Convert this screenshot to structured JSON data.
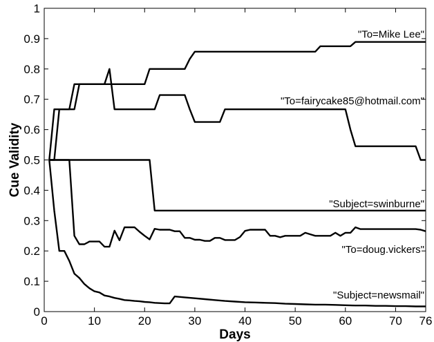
{
  "chart_data": {
    "type": "line",
    "xlabel": "Days",
    "ylabel": "Cue Validity",
    "xlim": [
      0,
      76
    ],
    "ylim": [
      0,
      1
    ],
    "x_ticks": [
      0,
      10,
      20,
      30,
      40,
      50,
      60,
      70,
      76
    ],
    "y_ticks": [
      0,
      0.1,
      0.2,
      0.3,
      0.4,
      0.5,
      0.6,
      0.7,
      0.8,
      0.9,
      1
    ],
    "y_tick_labels": [
      "0",
      "0.1",
      "0.2",
      "0.3",
      "0.4",
      "0.5",
      "0.6",
      "0.7",
      "0.8",
      "0.9",
      "1"
    ],
    "grid": false,
    "legend": "none",
    "series": [
      {
        "name": "\"To=Mike Lee\"",
        "x": [
          1,
          2,
          3,
          4,
          5,
          6,
          7,
          12,
          13,
          17,
          18,
          20,
          21,
          28,
          29,
          30,
          50,
          54,
          55,
          60,
          61,
          62,
          76
        ],
        "y": [
          0.5,
          0.667,
          0.667,
          0.667,
          0.667,
          0.75,
          0.75,
          0.75,
          0.75,
          0.75,
          0.75,
          0.75,
          0.8,
          0.8,
          0.833,
          0.857,
          0.857,
          0.857,
          0.875,
          0.875,
          0.875,
          0.889,
          0.889
        ]
      },
      {
        "name": "\"To=fairycake85@hotmail.com\"",
        "x": [
          1,
          2,
          3,
          6,
          7,
          12,
          13,
          14,
          21,
          22,
          23,
          28,
          29,
          30,
          34,
          35,
          36,
          59,
          60,
          61,
          62,
          74,
          75,
          76
        ],
        "y": [
          0.5,
          0.5,
          0.667,
          0.667,
          0.75,
          0.75,
          0.8,
          0.667,
          0.667,
          0.667,
          0.714,
          0.714,
          0.667,
          0.625,
          0.625,
          0.625,
          0.667,
          0.667,
          0.667,
          0.6,
          0.545,
          0.545,
          0.5,
          0.5
        ]
      },
      {
        "name": "\"Subject=swinburne\"",
        "x": [
          1,
          21,
          22,
          76
        ],
        "y": [
          0.5,
          0.5,
          0.333,
          0.333
        ]
      },
      {
        "name": "\"To=doug.vickers\"",
        "x": [
          1,
          5,
          6,
          7,
          8,
          9,
          10,
          11,
          12,
          13,
          14,
          15,
          16,
          17,
          18,
          19,
          20,
          21,
          22,
          23,
          24,
          25,
          26,
          27,
          28,
          29,
          30,
          31,
          32,
          33,
          34,
          35,
          36,
          37,
          38,
          39,
          40,
          41,
          42,
          43,
          44,
          45,
          46,
          47,
          48,
          49,
          50,
          51,
          52,
          53,
          54,
          55,
          56,
          57,
          58,
          59,
          60,
          61,
          62,
          63,
          64,
          65,
          66,
          67,
          68,
          69,
          70,
          71,
          72,
          73,
          74,
          75,
          76
        ],
        "y": [
          0.5,
          0.5,
          0.25,
          0.222,
          0.222,
          0.231,
          0.231,
          0.231,
          0.214,
          0.214,
          0.267,
          0.235,
          0.278,
          0.278,
          0.278,
          0.263,
          0.25,
          0.238,
          0.273,
          0.27,
          0.27,
          0.27,
          0.265,
          0.265,
          0.243,
          0.243,
          0.237,
          0.237,
          0.233,
          0.233,
          0.243,
          0.243,
          0.236,
          0.236,
          0.236,
          0.246,
          0.266,
          0.27,
          0.27,
          0.27,
          0.27,
          0.25,
          0.25,
          0.245,
          0.25,
          0.25,
          0.25,
          0.25,
          0.26,
          0.255,
          0.25,
          0.25,
          0.25,
          0.25,
          0.26,
          0.25,
          0.26,
          0.26,
          0.278,
          0.272,
          0.272,
          0.272,
          0.272,
          0.272,
          0.272,
          0.272,
          0.272,
          0.272,
          0.272,
          0.272,
          0.272,
          0.27,
          0.265
        ]
      },
      {
        "name": "\"Subject=newsmail\"",
        "x": [
          1,
          2,
          3,
          4,
          5,
          6,
          7,
          8,
          9,
          10,
          11,
          12,
          13,
          14,
          15,
          16,
          17,
          18,
          19,
          20,
          21,
          22,
          23,
          24,
          25,
          26,
          28,
          30,
          32,
          34,
          36,
          38,
          40,
          42,
          44,
          46,
          48,
          50,
          52,
          54,
          56,
          58,
          60,
          62,
          64,
          66,
          68,
          70,
          72,
          74,
          76
        ],
        "y": [
          0.5,
          0.333,
          0.2,
          0.2,
          0.167,
          0.125,
          0.111,
          0.091,
          0.077,
          0.067,
          0.063,
          0.053,
          0.05,
          0.045,
          0.042,
          0.038,
          0.037,
          0.035,
          0.034,
          0.032,
          0.031,
          0.029,
          0.028,
          0.027,
          0.027,
          0.05,
          0.047,
          0.044,
          0.041,
          0.038,
          0.035,
          0.033,
          0.031,
          0.03,
          0.029,
          0.028,
          0.026,
          0.025,
          0.024,
          0.023,
          0.023,
          0.022,
          0.021,
          0.02,
          0.02,
          0.019,
          0.019,
          0.018,
          0.018,
          0.017,
          0.017
        ]
      }
    ],
    "annotations": [
      {
        "text": "\"To=Mike Lee\"",
        "x": 76,
        "y": 0.915
      },
      {
        "text": "\"To=fairycake85@hotmail.com\"",
        "x": 76,
        "y": 0.695
      },
      {
        "text": "\"Subject=swinburne\"",
        "x": 76,
        "y": 0.355
      },
      {
        "text": "\"To=doug.vickers\"",
        "x": 76,
        "y": 0.205
      },
      {
        "text": "\"Subject=newsmail\"",
        "x": 76,
        "y": 0.055
      }
    ]
  }
}
